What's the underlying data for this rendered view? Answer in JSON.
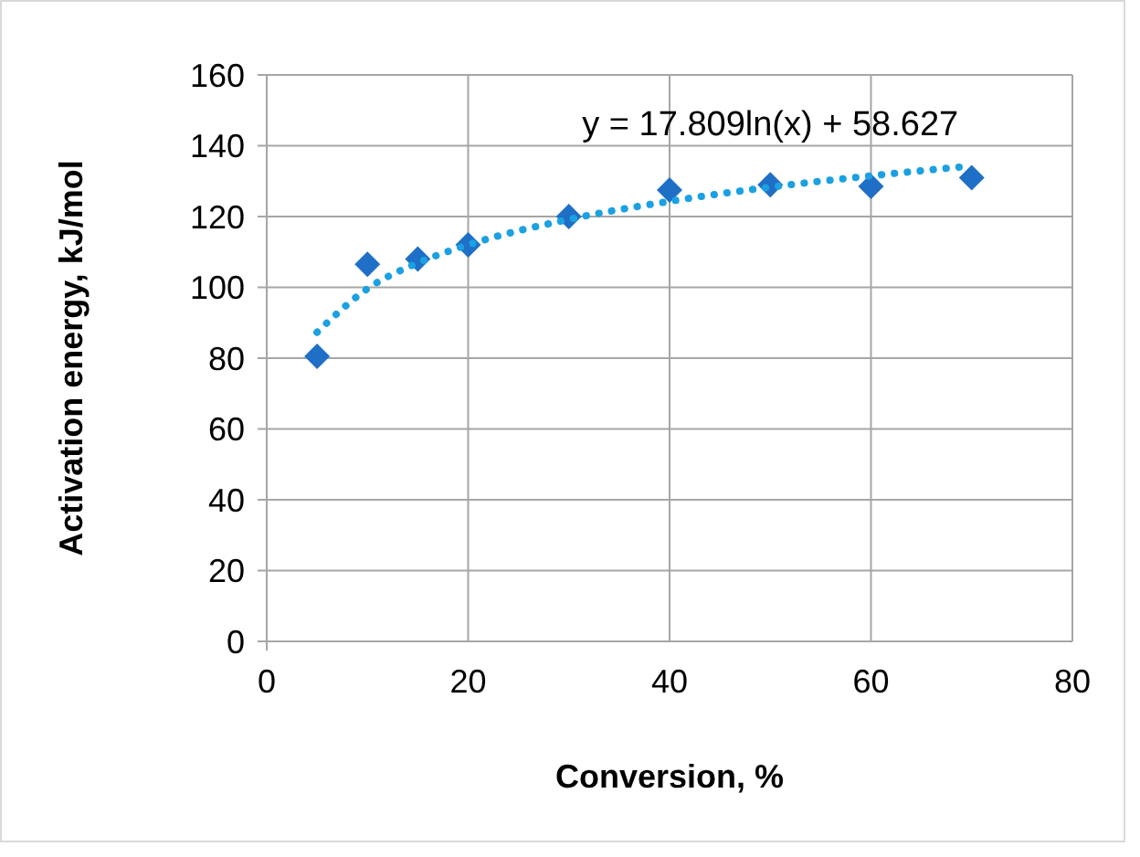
{
  "chart_data": {
    "type": "scatter",
    "xlabel": "Conversion, %",
    "ylabel": "Activation energy, kJ/mol",
    "xlim": [
      0,
      80
    ],
    "xticks": [
      0,
      20,
      40,
      60,
      80
    ],
    "ylim": [
      0,
      160
    ],
    "yticks": [
      0,
      20,
      40,
      60,
      80,
      100,
      120,
      140,
      160
    ],
    "grid": true,
    "series": [
      {
        "color": "#1f6fc6",
        "marker": "diamond",
        "x": [
          5,
          10,
          15,
          20,
          30,
          40,
          50,
          60,
          70
        ],
        "values": [
          80.5,
          106.5,
          108,
          112,
          120,
          127.5,
          129,
          128.5,
          131
        ]
      },
      {
        "type": "line",
        "color": "#1ba1e2",
        "line_style": "dotted",
        "x": [
          5,
          10,
          15,
          20,
          30,
          40,
          50,
          60,
          70
        ],
        "values": [
          87.3,
          99.6,
          106.9,
          112.0,
          119.2,
          124.3,
          128.3,
          131.5,
          134.3
        ]
      }
    ],
    "annotations": [
      "y = 17.809ln(x) + 58.627"
    ]
  }
}
